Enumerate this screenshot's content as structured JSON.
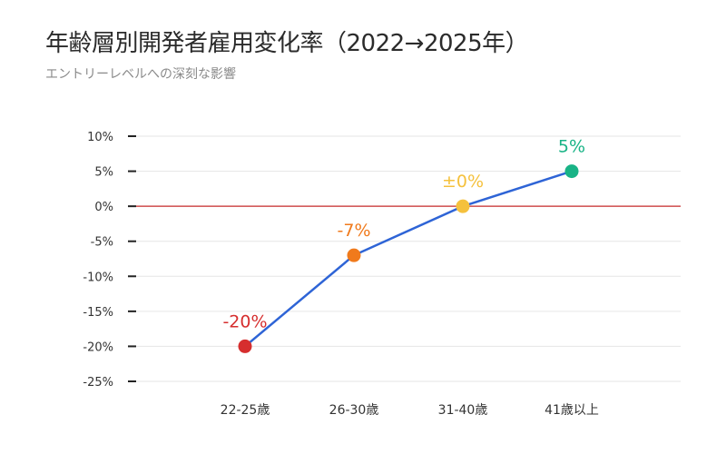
{
  "title": "年齢層別開発者雇用変化率（2022→2025年）",
  "subtitle": "エントリーレベルへの深刻な影響",
  "chart_data": {
    "type": "line",
    "title": "年齢層別開発者雇用変化率（2022→2025年）",
    "subtitle": "エントリーレベルへの深刻な影響",
    "xlabel": "",
    "ylabel": "",
    "categories": [
      "22-25歳",
      "26-30歳",
      "31-40歳",
      "41歳以上"
    ],
    "values": [
      -20,
      -7,
      0,
      5
    ],
    "data_labels": [
      "-20%",
      "-7%",
      "±0%",
      "5%"
    ],
    "point_colors": [
      "#d62e2e",
      "#f07a1c",
      "#f5c13d",
      "#19b386"
    ],
    "line_color": "#2e64d6",
    "zero_line_color": "#c62828",
    "ylim": [
      -25,
      10
    ],
    "yticks": [
      10,
      5,
      0,
      -5,
      -10,
      -15,
      -20,
      -25
    ],
    "ytick_labels": [
      "10%",
      "5%",
      "0%",
      "-5%",
      "-10%",
      "-15%",
      "-20%",
      "-25%"
    ],
    "grid": true
  }
}
